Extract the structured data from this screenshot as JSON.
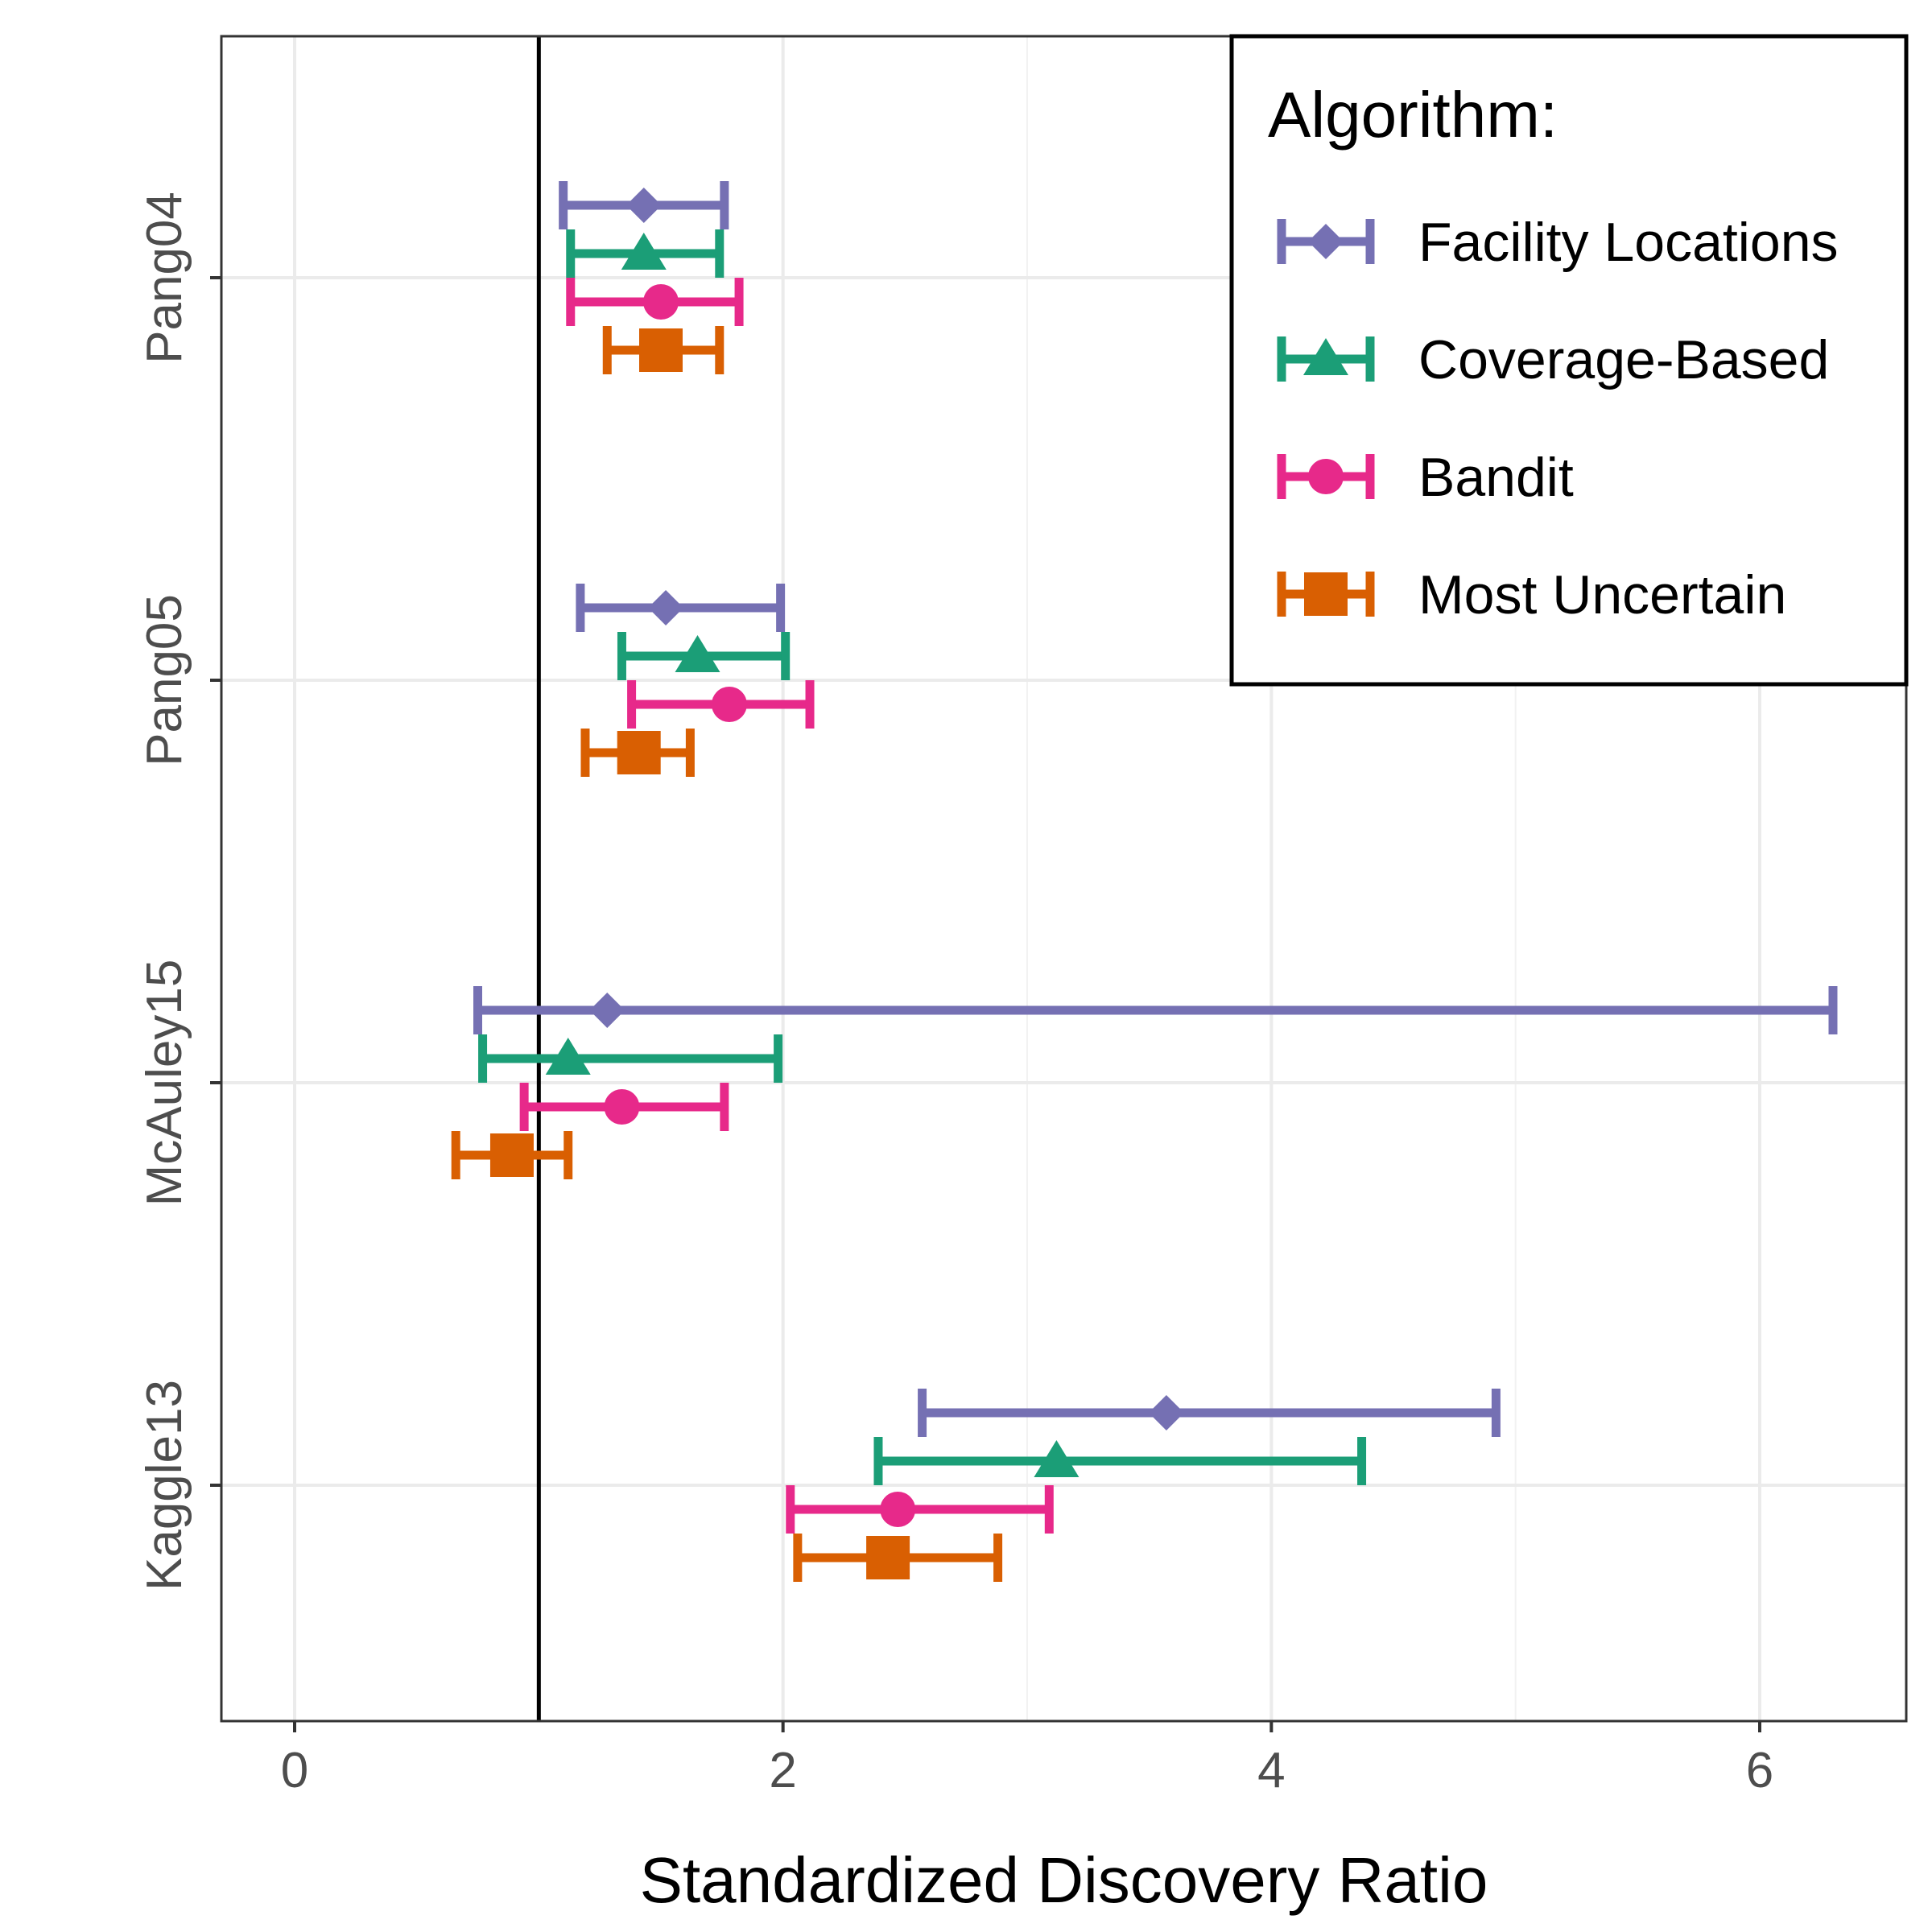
{
  "chart_data": {
    "type": "errorbar",
    "xlabel": "Standardized Discovery Ratio",
    "ylabel": "",
    "xlim": [
      -0.3,
      6.6
    ],
    "xticks": [
      0,
      2,
      4,
      6
    ],
    "xtick_labels": [
      "0",
      "2",
      "4",
      "6"
    ],
    "reference_line_x": 1,
    "grid": true,
    "legend": {
      "title": "Algorithm:",
      "placement": "top-right"
    },
    "categories": [
      "Pang04",
      "Pang05",
      "McAuley15",
      "Kaggle13"
    ],
    "series": [
      {
        "name": "Facility Locations",
        "color": "#7570b3",
        "marker": "diamond",
        "points": [
          {
            "category": "Pang04",
            "value": 1.43,
            "low": 1.1,
            "high": 1.76
          },
          {
            "category": "Pang05",
            "value": 1.52,
            "low": 1.17,
            "high": 1.99
          },
          {
            "category": "McAuley15",
            "value": 1.28,
            "low": 0.75,
            "high": 6.3
          },
          {
            "category": "Kaggle13",
            "value": 3.57,
            "low": 2.57,
            "high": 4.92
          }
        ]
      },
      {
        "name": "Coverage-Based",
        "color": "#1b9e77",
        "marker": "triangle",
        "points": [
          {
            "category": "Pang04",
            "value": 1.43,
            "low": 1.13,
            "high": 1.74
          },
          {
            "category": "Pang05",
            "value": 1.65,
            "low": 1.34,
            "high": 2.01
          },
          {
            "category": "McAuley15",
            "value": 1.12,
            "low": 0.77,
            "high": 1.98
          },
          {
            "category": "Kaggle13",
            "value": 3.12,
            "low": 2.39,
            "high": 4.37
          }
        ]
      },
      {
        "name": "Bandit",
        "color": "#e7298a",
        "marker": "circle",
        "points": [
          {
            "category": "Pang04",
            "value": 1.5,
            "low": 1.13,
            "high": 1.82
          },
          {
            "category": "Pang05",
            "value": 1.78,
            "low": 1.38,
            "high": 2.11
          },
          {
            "category": "McAuley15",
            "value": 1.34,
            "low": 0.94,
            "high": 1.76
          },
          {
            "category": "Kaggle13",
            "value": 2.47,
            "low": 2.03,
            "high": 3.09
          }
        ]
      },
      {
        "name": "Most Uncertain",
        "color": "#d95f02",
        "marker": "square",
        "points": [
          {
            "category": "Pang04",
            "value": 1.5,
            "low": 1.28,
            "high": 1.74
          },
          {
            "category": "Pang05",
            "value": 1.41,
            "low": 1.19,
            "high": 1.62
          },
          {
            "category": "McAuley15",
            "value": 0.89,
            "low": 0.66,
            "high": 1.12
          },
          {
            "category": "Kaggle13",
            "value": 2.43,
            "low": 2.06,
            "high": 2.88
          }
        ]
      }
    ]
  }
}
